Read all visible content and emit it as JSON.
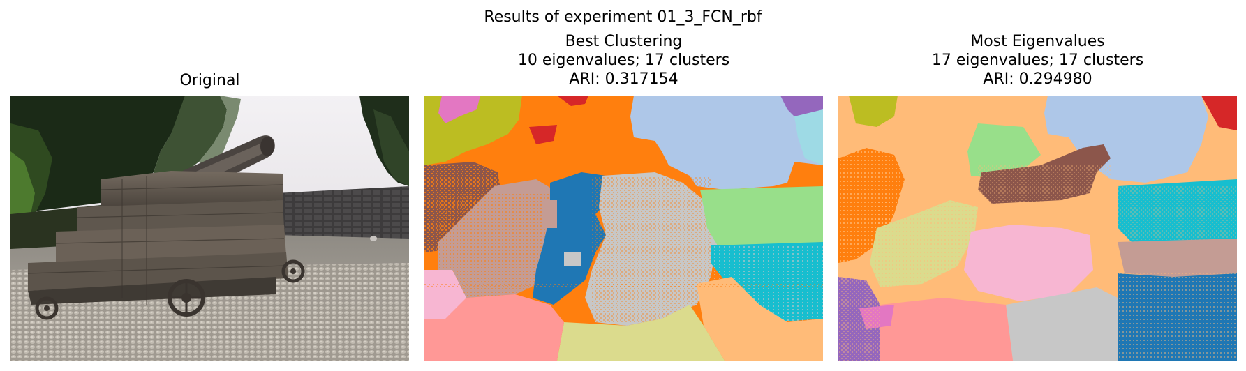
{
  "figure": {
    "suptitle": "Results of experiment 01_3_FCN_rbf"
  },
  "panels": [
    {
      "title_lines": [
        "Original"
      ],
      "image_description": "photo of an old cannon on wooden carriage on cobblestone ground with trees and stone wall"
    },
    {
      "title_lines": [
        "Best Clustering",
        "10 eigenvalues; 17 clusters",
        "ARI: 0.317154"
      ]
    },
    {
      "title_lines": [
        "Most Eigenvalues",
        "17 eigenvalues; 17 clusters",
        "ARI: 0.294980"
      ]
    }
  ],
  "palette": {
    "blue": "#1f77b4",
    "light_blue": "#aec7e8",
    "orange": "#ff7f0e",
    "light_orange": "#ffbb78",
    "green": "#2ca02c",
    "light_green": "#98df8a",
    "red": "#d62728",
    "salmon": "#ff9896",
    "purple": "#9467bd",
    "brown": "#8c564b",
    "rosy_brown": "#c49c94",
    "pink": "#e377c2",
    "light_pink": "#f7b6d2",
    "silver": "#c7c7c7",
    "olive": "#bcbd22",
    "khaki": "#dbdb8d",
    "cyan": "#17becf",
    "light_cyan": "#9edae5"
  }
}
